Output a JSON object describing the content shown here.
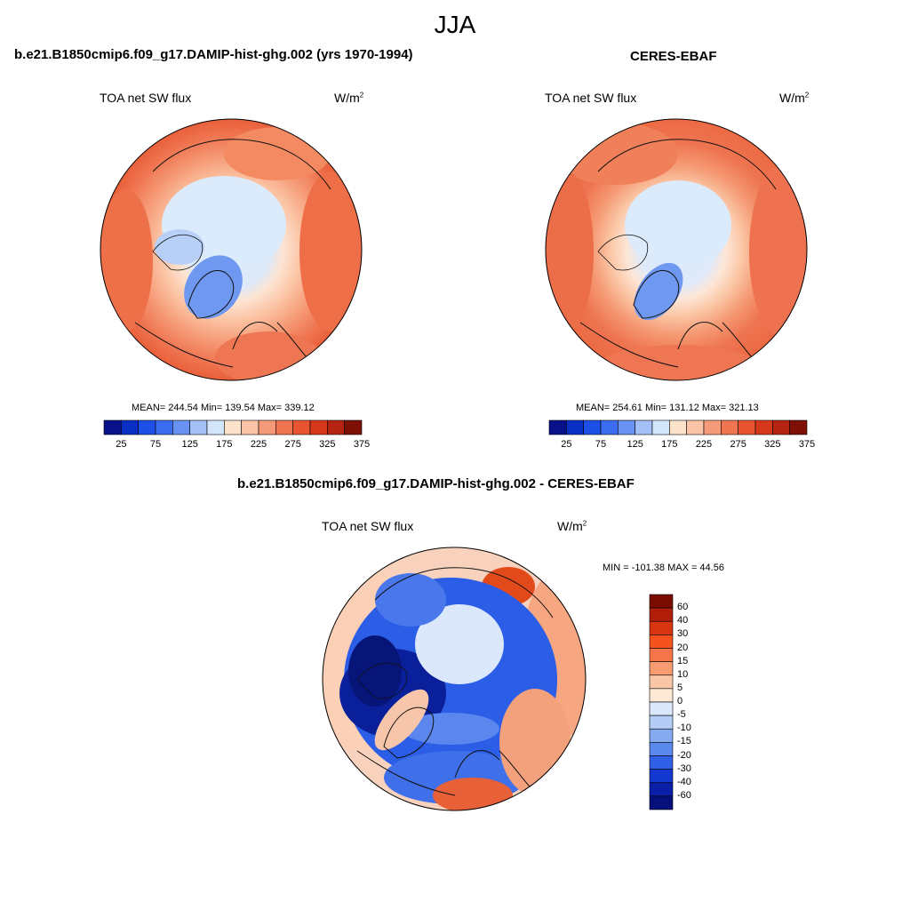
{
  "season": "JJA",
  "panels": [
    {
      "title": "b.e21.B1850cmip6.f09_g17.DAMIP-hist-ghg.002 (yrs 1970-1994)",
      "variable": "TOA net SW flux",
      "units_base": "W/m",
      "units_exp": "2",
      "stats": "MEAN= 244.54  Min= 139.54  Max= 339.12"
    },
    {
      "title": "CERES-EBAF",
      "variable": "TOA net SW flux",
      "units_base": "W/m",
      "units_exp": "2",
      "stats": "MEAN= 254.61  Min= 131.12  Max= 321.13"
    },
    {
      "title": "b.e21.B1850cmip6.f09_g17.DAMIP-hist-ghg.002 - CERES-EBAF",
      "variable": "TOA net SW flux",
      "units_base": "W/m",
      "units_exp": "2",
      "stats": "MIN = -101.38 MAX =  44.56"
    }
  ],
  "colorbar_abs": {
    "labels": [
      "25",
      "75",
      "125",
      "175",
      "225",
      "275",
      "325",
      "375"
    ],
    "colors": [
      "#08108a",
      "#0a2fc4",
      "#1c50e6",
      "#3c6cf0",
      "#6a92f2",
      "#a4c0f6",
      "#d4e6fb",
      "#fde2cc",
      "#fbc4a6",
      "#f59a78",
      "#ef7550",
      "#e85530",
      "#d6381c",
      "#b42410",
      "#7e1006"
    ]
  },
  "colorbar_diff": {
    "labels": [
      "60",
      "40",
      "30",
      "20",
      "15",
      "10",
      "5",
      "0",
      "-5",
      "-10",
      "-15",
      "-20",
      "-30",
      "-40",
      "-60"
    ],
    "colors": [
      "#7a0c04",
      "#b01e0a",
      "#d83612",
      "#f4521e",
      "#f6744a",
      "#f79c72",
      "#fbc6a6",
      "#fde8d6",
      "#dbe8fb",
      "#b4cdf6",
      "#86aaf0",
      "#5a88ec",
      "#2f5fe6",
      "#1238d0",
      "#0a1fa8",
      "#05107a"
    ]
  }
}
